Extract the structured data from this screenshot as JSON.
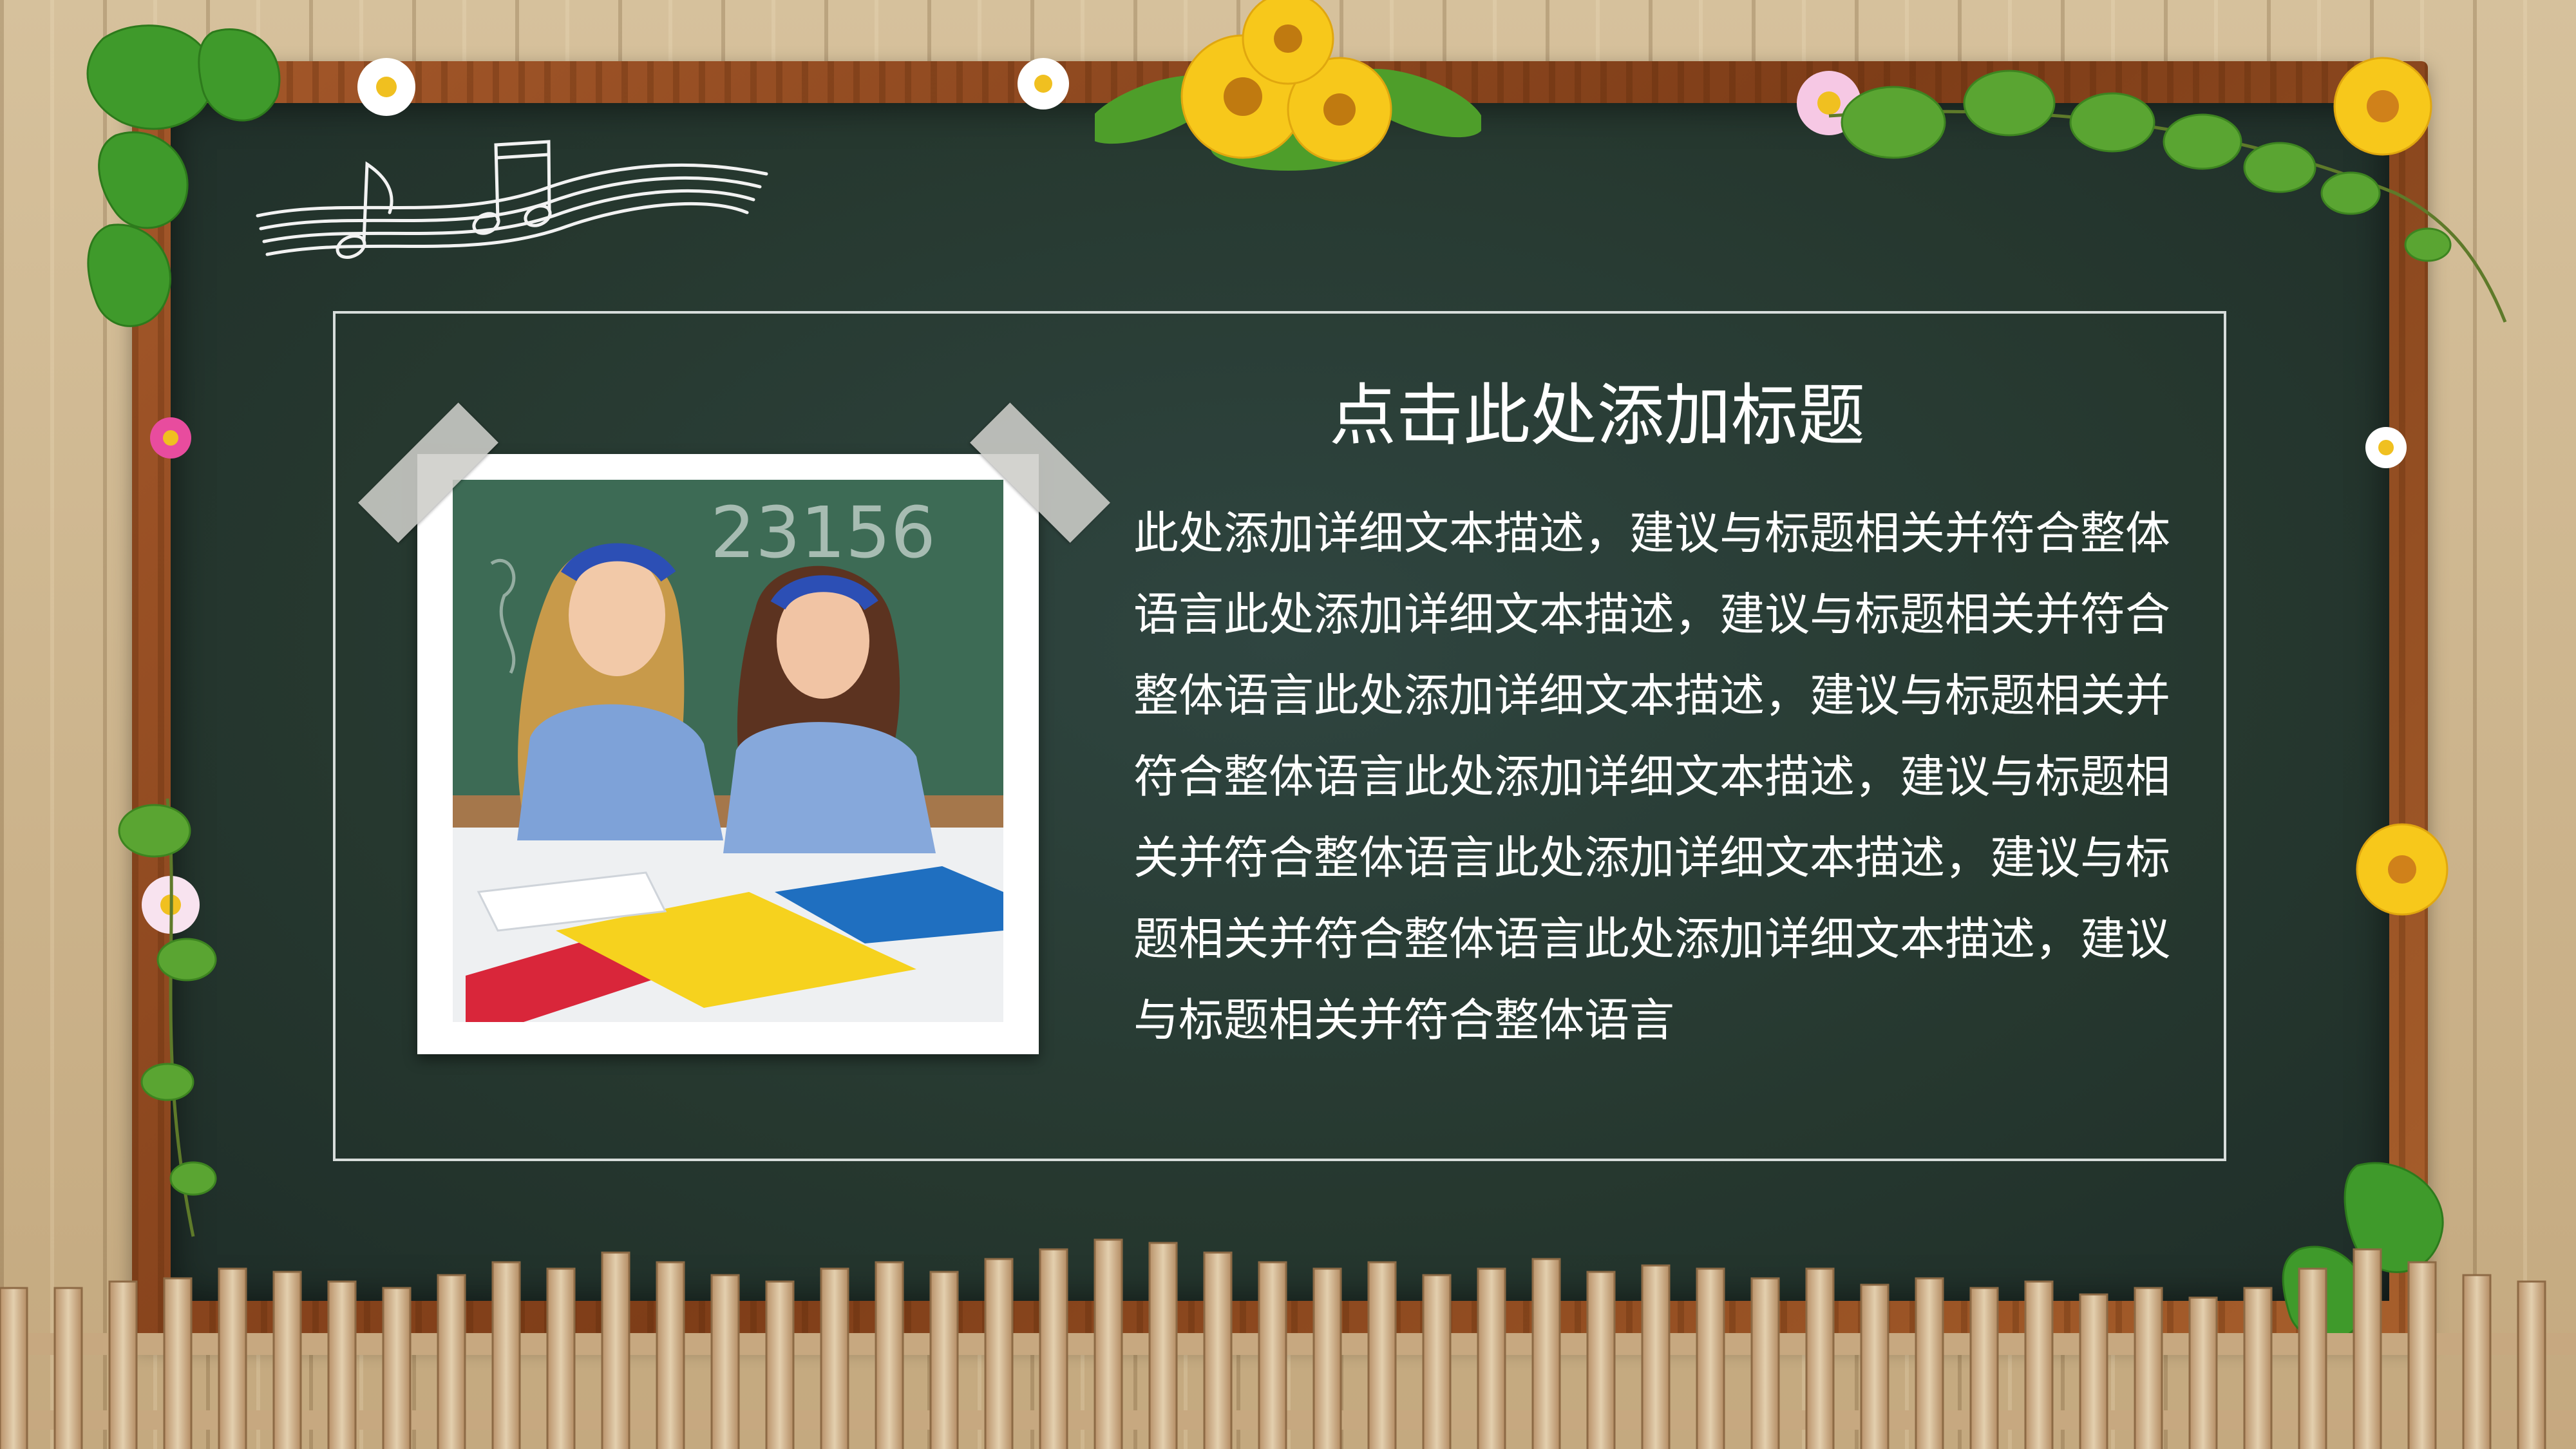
{
  "slide": {
    "title": "点击此处添加标题",
    "body": "此处添加详细文本描述，建议与标题相关并符合整体语言此处添加详细文本描述，建议与标题相关并符合整体语言此处添加详细文本描述，建议与标题相关并符合整体语言此处添加详细文本描述，建议与标题相关并符合整体语言此处添加详细文本描述，建议与标题相关并符合整体语言此处添加详细文本描述，建议与标题相关并符合整体语言"
  },
  "colors": {
    "board": "#26382f",
    "frame": "#8e4a20",
    "text": "#ffffff",
    "wall": "#cbb48e"
  },
  "photo": {
    "board_digits": "23156"
  },
  "icons": [
    "music-notes-icon",
    "sunflower-icon",
    "daisy-icon",
    "ivy-leaf-icon",
    "fence-icon"
  ]
}
